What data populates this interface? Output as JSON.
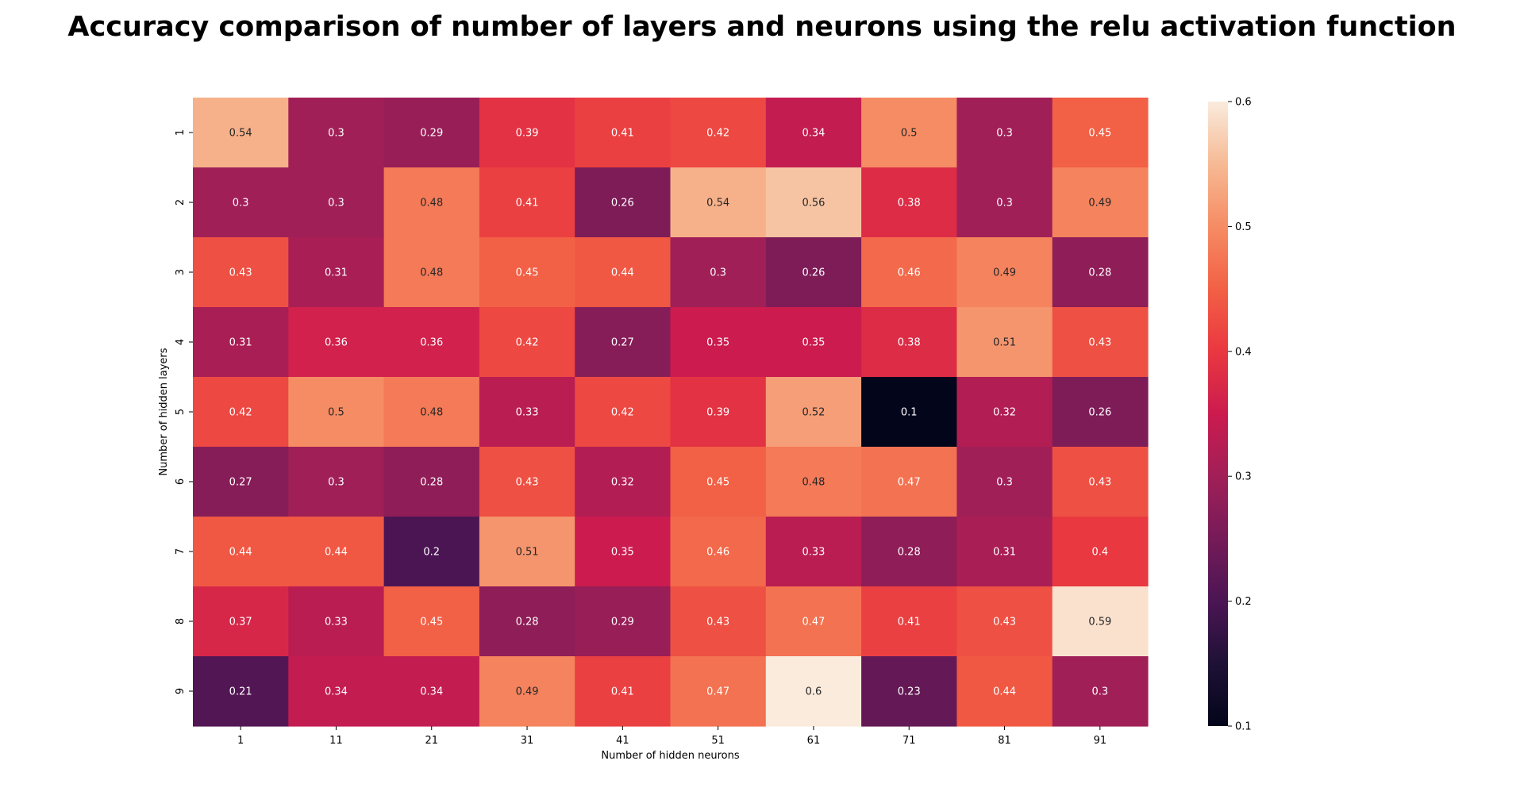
{
  "chart_data": {
    "type": "heatmap",
    "title": "Accuracy comparison of number of layers and neurons using the relu activation function",
    "xlabel": "Number of hidden neurons",
    "ylabel": "Number of hidden layers",
    "x_categories": [
      "1",
      "11",
      "21",
      "31",
      "41",
      "51",
      "61",
      "71",
      "81",
      "91"
    ],
    "y_categories": [
      "1",
      "2",
      "3",
      "4",
      "5",
      "6",
      "7",
      "8",
      "9"
    ],
    "values": [
      [
        0.54,
        0.3,
        0.29,
        0.39,
        0.41,
        0.42,
        0.34,
        0.5,
        0.3,
        0.45
      ],
      [
        0.3,
        0.3,
        0.48,
        0.41,
        0.26,
        0.54,
        0.56,
        0.38,
        0.3,
        0.49
      ],
      [
        0.43,
        0.31,
        0.48,
        0.45,
        0.44,
        0.3,
        0.26,
        0.46,
        0.49,
        0.28
      ],
      [
        0.31,
        0.36,
        0.36,
        0.42,
        0.27,
        0.35,
        0.35,
        0.38,
        0.51,
        0.43
      ],
      [
        0.42,
        0.5,
        0.48,
        0.33,
        0.42,
        0.39,
        0.52,
        0.1,
        0.32,
        0.26
      ],
      [
        0.27,
        0.3,
        0.28,
        0.43,
        0.32,
        0.45,
        0.48,
        0.47,
        0.3,
        0.43
      ],
      [
        0.44,
        0.44,
        0.2,
        0.51,
        0.35,
        0.46,
        0.33,
        0.28,
        0.31,
        0.4
      ],
      [
        0.37,
        0.33,
        0.45,
        0.28,
        0.29,
        0.43,
        0.47,
        0.41,
        0.43,
        0.59
      ],
      [
        0.21,
        0.34,
        0.34,
        0.49,
        0.41,
        0.47,
        0.6,
        0.23,
        0.44,
        0.3
      ]
    ],
    "colorbar": {
      "range": [
        0.1,
        0.6
      ],
      "ticks": [
        "0.1",
        "0.2",
        "0.3",
        "0.4",
        "0.5",
        "0.6"
      ],
      "colormap": "rocket"
    },
    "colors": {
      "low": "#03051a",
      "high": "#faebdd"
    },
    "grid": false,
    "legend": "colorbar-right"
  }
}
